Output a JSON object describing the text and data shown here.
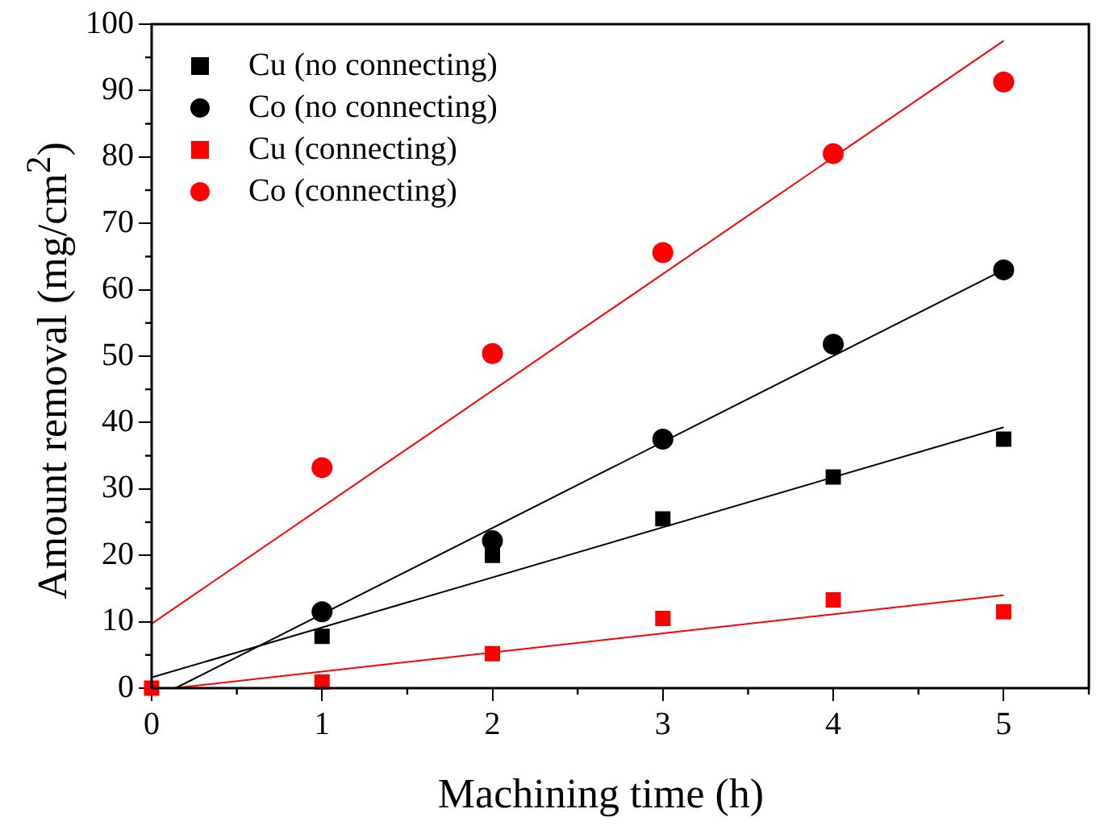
{
  "chart_data": {
    "type": "scatter",
    "xlabel": "Machining time (h)",
    "ylabel": "Amount removal (mg/cm$^{2}$)",
    "xlim": [
      0,
      5.5
    ],
    "xticks": [
      0,
      1,
      2,
      3,
      4,
      5
    ],
    "ylim": [
      0,
      100
    ],
    "yticks": [
      0,
      10,
      20,
      30,
      40,
      50,
      60,
      70,
      80,
      90,
      100
    ],
    "legend": "top left",
    "series": [
      {
        "name": "Cu (no connecting)",
        "color": "#000000",
        "marker": "square",
        "x": [
          1,
          2,
          3,
          4,
          5
        ],
        "values": [
          7.8,
          20,
          25.5,
          31.8,
          37.5
        ]
      },
      {
        "name": "Co (no connecting)",
        "color": "#000000",
        "marker": "circle",
        "x": [
          1,
          2,
          3,
          4,
          5
        ],
        "values": [
          11.5,
          22.2,
          37.5,
          51.8,
          63
        ]
      },
      {
        "name": "Cu (connecting)",
        "color": "#ff0000",
        "marker": "square",
        "x": [
          0,
          1,
          2,
          3,
          4,
          5
        ],
        "values": [
          0,
          0.9,
          5.2,
          10.5,
          13.3,
          11.5
        ]
      },
      {
        "name": "Co (connecting)",
        "color": "#ff0000",
        "marker": "circle",
        "x": [
          1,
          2,
          3,
          4,
          5
        ],
        "values": [
          33.2,
          50.4,
          65.6,
          80.5,
          91.3
        ]
      },
      {
        "type": "line",
        "color": "#000000",
        "marker": "none",
        "x": [
          0,
          5
        ],
        "values": [
          1.6,
          39.3
        ]
      },
      {
        "type": "line",
        "color": "#000000",
        "marker": "none",
        "x": [
          0.14,
          5
        ],
        "values": [
          0,
          63
        ]
      },
      {
        "type": "line",
        "color": "#ff0000",
        "marker": "none",
        "x": [
          0.13,
          5
        ],
        "values": [
          0,
          14
        ]
      },
      {
        "type": "line",
        "color": "#ff0000",
        "marker": "none",
        "x": [
          0,
          5
        ],
        "values": [
          9.7,
          97.5
        ]
      }
    ]
  }
}
